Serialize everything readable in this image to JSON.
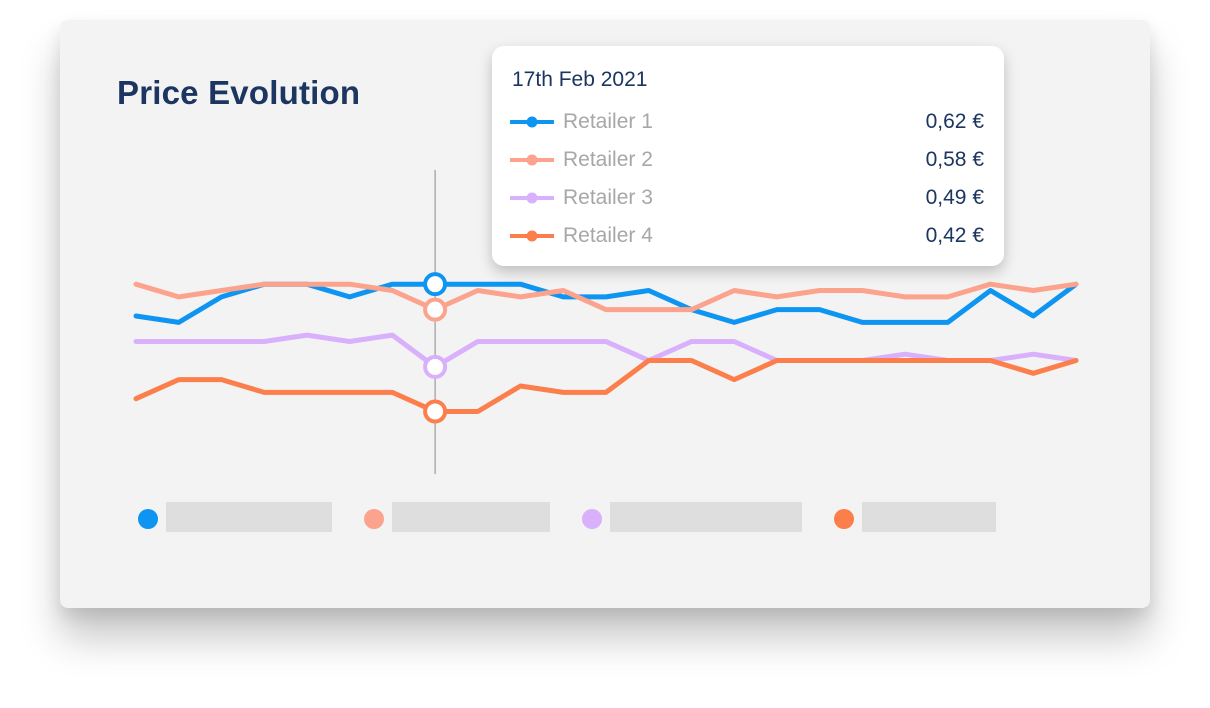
{
  "title": "Price Evolution",
  "tooltip": {
    "date": "17th Feb 2021",
    "rows": [
      {
        "name": "Retailer 1",
        "value": "0,62 €",
        "color": "#0e95f2"
      },
      {
        "name": "Retailer 2",
        "value": "0,58 €",
        "color": "#fba38c"
      },
      {
        "name": "Retailer 3",
        "value": "0,49 €",
        "color": "#d9b0fb"
      },
      {
        "name": "Retailer 4",
        "value": "0,42 €",
        "color": "#fb7e4b"
      }
    ]
  },
  "legend": {
    "colors": [
      "#0e95f2",
      "#fba38c",
      "#d9b0fb",
      "#fb7e4b"
    ]
  },
  "chart_data": {
    "type": "line",
    "title": "Price Evolution",
    "xlabel": "",
    "ylabel": "",
    "hover_index": 7,
    "grid": false,
    "ylim": [
      0.35,
      0.68
    ],
    "series": [
      {
        "name": "Retailer 1",
        "color": "#0e95f2",
        "values": [
          0.57,
          0.56,
          0.6,
          0.62,
          0.62,
          0.6,
          0.62,
          0.62,
          0.62,
          0.62,
          0.6,
          0.6,
          0.61,
          0.58,
          0.56,
          0.58,
          0.58,
          0.56,
          0.56,
          0.56,
          0.61,
          0.57,
          0.62
        ]
      },
      {
        "name": "Retailer 2",
        "color": "#fba38c",
        "values": [
          0.62,
          0.6,
          0.61,
          0.62,
          0.62,
          0.62,
          0.61,
          0.58,
          0.61,
          0.6,
          0.61,
          0.58,
          0.58,
          0.58,
          0.61,
          0.6,
          0.61,
          0.61,
          0.6,
          0.6,
          0.62,
          0.61,
          0.62
        ]
      },
      {
        "name": "Retailer 3",
        "color": "#d9b0fb",
        "values": [
          0.53,
          0.53,
          0.53,
          0.53,
          0.54,
          0.53,
          0.54,
          0.49,
          0.53,
          0.53,
          0.53,
          0.53,
          0.5,
          0.53,
          0.53,
          0.5,
          0.5,
          0.5,
          0.51,
          0.5,
          0.5,
          0.51,
          0.5
        ]
      },
      {
        "name": "Retailer 4",
        "color": "#fb7e4b",
        "values": [
          0.44,
          0.47,
          0.47,
          0.45,
          0.45,
          0.45,
          0.45,
          0.42,
          0.42,
          0.46,
          0.45,
          0.45,
          0.5,
          0.5,
          0.47,
          0.5,
          0.5,
          0.5,
          0.5,
          0.5,
          0.5,
          0.48,
          0.5
        ]
      }
    ]
  }
}
